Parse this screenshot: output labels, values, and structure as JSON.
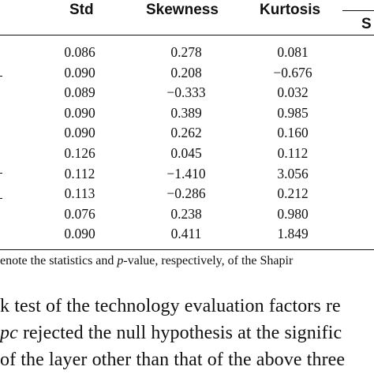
{
  "table": {
    "headers": {
      "std": "Std",
      "skewness": "Skewness",
      "kurtosis": "Kurtosis",
      "partial": "S"
    },
    "rows": [
      {
        "std": "0.086",
        "skewness": "0.278",
        "kurtosis": "0.081"
      },
      {
        "std": "0.090",
        "skewness": "0.208",
        "kurtosis": "−0.676"
      },
      {
        "std": "0.089",
        "skewness": "−0.333",
        "kurtosis": "0.032"
      },
      {
        "std": "0.090",
        "skewness": "0.389",
        "kurtosis": "0.985"
      },
      {
        "std": "0.090",
        "skewness": "0.262",
        "kurtosis": "0.160"
      },
      {
        "std": "0.126",
        "skewness": "0.045",
        "kurtosis": "0.112"
      },
      {
        "std": "0.112",
        "skewness": "−1.410",
        "kurtosis": "3.056"
      },
      {
        "std": "0.113",
        "skewness": "−0.286",
        "kurtosis": "0.212"
      },
      {
        "std": "0.076",
        "skewness": "0.238",
        "kurtosis": "0.980"
      },
      {
        "std": "0.090",
        "skewness": "0.411",
        "kurtosis": "1.849"
      }
    ]
  },
  "footnote": {
    "part1": "enote the statistics and ",
    "p_italic": "p",
    "part2": "-value, respectively, of the Shapir"
  },
  "body": {
    "line1": "k test of the technology evaluation factors re",
    "line2_italic": "pc",
    "line2_rest": " rejected the null hypothesis at the signific",
    "line3": "of the layer other than that of the above three"
  }
}
